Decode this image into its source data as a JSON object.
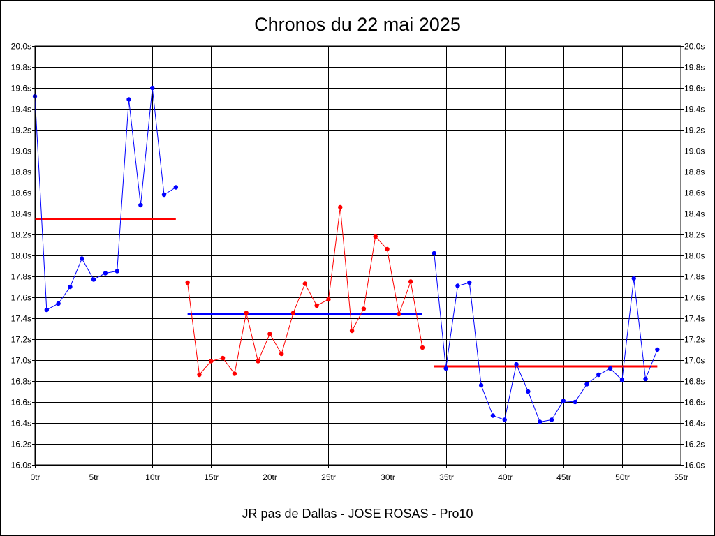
{
  "chart_data": {
    "type": "line",
    "title": "Chronos du 22 mai 2025",
    "subtitle": "JR pas de Dallas - JOSE ROSAS - Pro10",
    "xlim": [
      0,
      55
    ],
    "ylim": [
      16.0,
      20.0
    ],
    "x_ticks": [
      "0tr",
      "5tr",
      "10tr",
      "15tr",
      "20tr",
      "25tr",
      "30tr",
      "35tr",
      "40tr",
      "45tr",
      "50tr",
      "55tr"
    ],
    "y_ticks": [
      "16.0s",
      "16.2s",
      "16.4s",
      "16.6s",
      "16.8s",
      "17.0s",
      "17.2s",
      "17.4s",
      "17.6s",
      "17.8s",
      "18.0s",
      "18.2s",
      "18.4s",
      "18.6s",
      "18.8s",
      "19.0s",
      "19.2s",
      "19.4s",
      "19.6s",
      "19.8s",
      "20.0s"
    ],
    "grid": true,
    "series": [
      {
        "color": "#0000ff",
        "x": [
          0,
          1,
          2,
          3,
          4,
          5,
          6,
          7,
          8,
          9,
          10,
          11,
          12
        ],
        "values": [
          19.52,
          17.48,
          17.54,
          17.7,
          17.97,
          17.77,
          17.83,
          17.85,
          19.49,
          18.48,
          19.6,
          18.58,
          18.65
        ]
      },
      {
        "color": "#ff0000",
        "x": [
          13,
          14,
          15,
          16,
          17,
          18,
          19,
          20,
          21,
          22,
          23,
          24,
          25,
          26,
          27,
          28,
          29,
          30,
          31,
          32,
          33
        ],
        "values": [
          17.74,
          16.86,
          16.99,
          17.02,
          16.87,
          17.45,
          16.99,
          17.25,
          17.06,
          17.45,
          17.73,
          17.52,
          17.58,
          18.46,
          17.28,
          17.49,
          18.18,
          18.06,
          17.44,
          17.75,
          17.12
        ]
      },
      {
        "color": "#0000ff",
        "x": [
          34,
          35,
          36,
          37,
          38,
          39,
          40,
          41,
          42,
          43,
          44,
          45,
          46,
          47,
          48,
          49,
          50,
          51,
          52,
          53
        ],
        "values": [
          18.02,
          16.92,
          17.71,
          17.74,
          16.76,
          16.47,
          16.43,
          16.96,
          16.7,
          16.41,
          16.43,
          16.61,
          16.6,
          16.77,
          16.86,
          16.92,
          16.81,
          17.78,
          16.82,
          17.1
        ]
      }
    ],
    "average_lines": [
      {
        "color": "#ff0000",
        "x_start": 0,
        "x_end": 12,
        "value": 18.35
      },
      {
        "color": "#0000ff",
        "x_start": 13,
        "x_end": 33,
        "value": 17.44
      },
      {
        "color": "#ff0000",
        "x_start": 34,
        "x_end": 53,
        "value": 16.94
      }
    ]
  }
}
